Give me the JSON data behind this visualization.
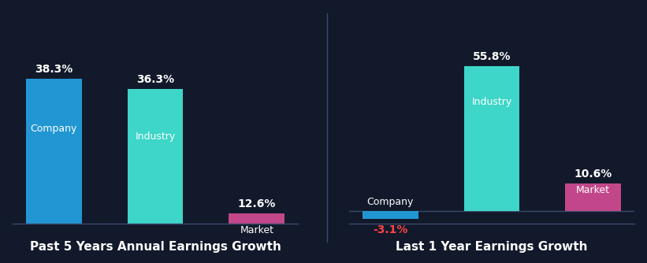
{
  "background_color": "#12192b",
  "chart1_title": "Past 5 Years Annual Earnings Growth",
  "chart2_title": "Last 1 Year Earnings Growth",
  "chart1": {
    "categories": [
      "Company",
      "Industry",
      "Market"
    ],
    "values": [
      38.3,
      36.3,
      12.6
    ],
    "colors": [
      "#2196d3",
      "#3dd6c8",
      "#c2478a"
    ],
    "labels": [
      "38.3%",
      "36.3%",
      "12.6%"
    ]
  },
  "chart2": {
    "categories": [
      "Company",
      "Industry",
      "Market"
    ],
    "values": [
      -3.1,
      55.8,
      10.6
    ],
    "colors": [
      "#2196d3",
      "#3dd6c8",
      "#c2478a"
    ],
    "labels": [
      "-3.1%",
      "55.8%",
      "10.6%"
    ],
    "negative_label_color": "#ff4444"
  },
  "bar_width": 0.55,
  "title_color": "#ffffff",
  "label_color": "#ffffff",
  "title_fontsize": 11,
  "value_fontsize": 10,
  "category_fontsize": 9,
  "separator_color": "#3a4a6b"
}
